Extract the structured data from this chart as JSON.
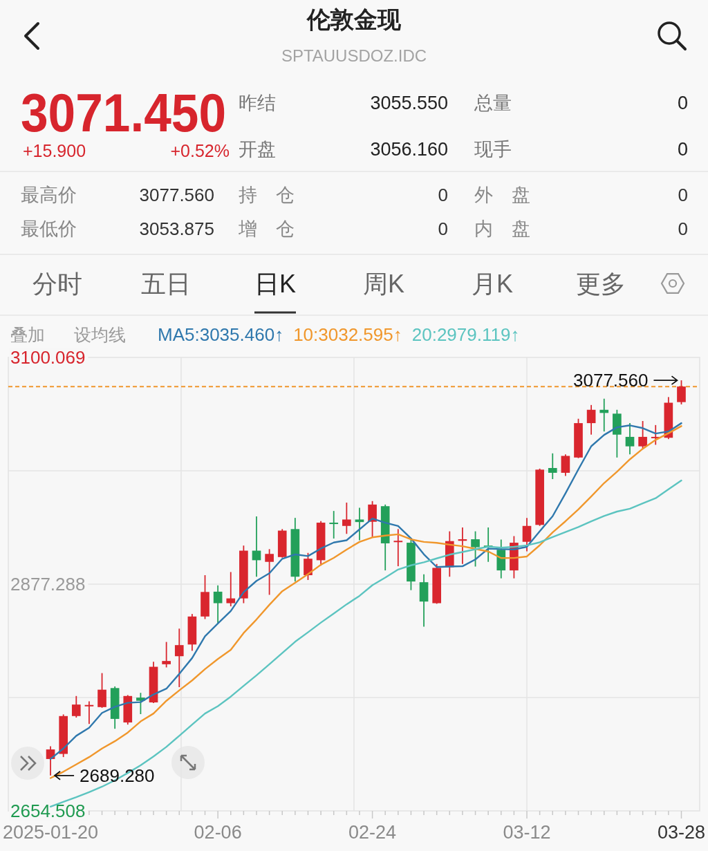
{
  "chart_data": [
    {
      "type": "other",
      "title": "伦敦金现",
      "subtitle": "SPTAUUSDOZ.IDC",
      "annotations": [
        "3071.450",
        "+15.900",
        "+0.52%",
        "昨结",
        "3055.550",
        "总量",
        "0",
        "开盘",
        "3056.160",
        "现手",
        "0",
        "最高价",
        "3077.560",
        "持　仓",
        "0",
        "外　盘",
        "0",
        "最低价",
        "3053.875",
        "增　仓",
        "0",
        "内　盘",
        "0",
        "分时",
        "五日",
        "日K",
        "周K",
        "月K",
        "更多",
        "叠加",
        "设均线"
      ]
    },
    {
      "type": "candlestick",
      "categories": [
        "2025-01-20",
        null,
        null,
        null,
        null,
        null,
        null,
        null,
        null,
        null,
        null,
        null,
        null,
        "02-06",
        null,
        null,
        null,
        null,
        null,
        null,
        null,
        null,
        null,
        null,
        null,
        "02-24",
        null,
        null,
        null,
        null,
        null,
        null,
        null,
        null,
        null,
        null,
        null,
        "03-12",
        null,
        null,
        null,
        null,
        null,
        null,
        null,
        null,
        null,
        null,
        null,
        "03-28"
      ],
      "ohlc": [
        [
          2705.5,
          2718.0,
          2689.28,
          2714.9
        ],
        [
          2710.5,
          2749.3,
          2707.4,
          2747.7
        ],
        [
          2747.7,
          2767.4,
          2746.2,
          2759.0
        ],
        [
          2757.4,
          2762.1,
          2739.9,
          2758.6
        ],
        [
          2756.5,
          2789.9,
          2755.8,
          2773.6
        ],
        [
          2775.2,
          2776.8,
          2735.2,
          2744.9
        ],
        [
          2741.4,
          2768.3,
          2739.3,
          2767.4
        ],
        [
          2765.8,
          2770.5,
          2749.6,
          2762.7
        ],
        [
          2761.1,
          2801.1,
          2760.5,
          2796.1
        ],
        [
          2798.6,
          2820.5,
          2795.5,
          2801.8
        ],
        [
          2806.5,
          2833.6,
          2776.1,
          2817.4
        ],
        [
          2818.0,
          2848.0,
          2811.8,
          2845.5
        ],
        [
          2845.5,
          2886.1,
          2843.0,
          2869.6
        ],
        [
          2869.9,
          2876.1,
          2838.6,
          2858.6
        ],
        [
          2858.6,
          2889.2,
          2855.5,
          2863.3
        ],
        [
          2863.3,
          2915.2,
          2858.6,
          2910.2
        ],
        [
          2910.2,
          2943.9,
          2884.6,
          2900.8
        ],
        [
          2899.2,
          2911.7,
          2866.8,
          2907.0
        ],
        [
          2903.9,
          2931.4,
          2903.3,
          2929.9
        ],
        [
          2931.4,
          2942.4,
          2879.9,
          2884.6
        ],
        [
          2886.1,
          2908.0,
          2881.4,
          2902.3
        ],
        [
          2900.8,
          2939.2,
          2895.5,
          2937.7
        ],
        [
          2937.7,
          2949.2,
          2922.1,
          2936.4
        ],
        [
          2934.5,
          2957.4,
          2926.7,
          2940.8
        ],
        [
          2940.8,
          2952.4,
          2920.5,
          2938.3
        ],
        [
          2938.6,
          2958.9,
          2923.6,
          2955.5
        ],
        [
          2953.9,
          2955.5,
          2890.8,
          2917.4
        ],
        [
          2918.6,
          2931.4,
          2894.9,
          2919.9
        ],
        [
          2918.0,
          2922.7,
          2871.4,
          2879.9
        ],
        [
          2879.2,
          2887.0,
          2835.5,
          2860.2
        ],
        [
          2858.6,
          2897.1,
          2858.0,
          2893.3
        ],
        [
          2893.9,
          2929.2,
          2884.6,
          2919.6
        ],
        [
          2919.9,
          2933.0,
          2897.1,
          2921.4
        ],
        [
          2921.4,
          2929.2,
          2894.6,
          2913.6
        ],
        [
          2915.2,
          2933.0,
          2899.2,
          2913.3
        ],
        [
          2911.1,
          2921.1,
          2883.0,
          2890.8
        ],
        [
          2890.8,
          2924.5,
          2883.0,
          2918.0
        ],
        [
          2918.9,
          2942.4,
          2909.6,
          2934.5
        ],
        [
          2935.5,
          2990.8,
          2934.5,
          2989.8
        ],
        [
          2991.4,
          3005.8,
          2980.5,
          2986.7
        ],
        [
          2986.7,
          3004.8,
          2983.6,
          3003.3
        ],
        [
          3001.7,
          3039.8,
          3001.1,
          3035.5
        ],
        [
          3035.5,
          3053.3,
          3024.2,
          3048.6
        ],
        [
          3048.6,
          3059.5,
          3027.3,
          3045.5
        ],
        [
          3044.8,
          3048.6,
          3001.7,
          3024.2
        ],
        [
          3022.0,
          3035.5,
          3004.8,
          3012.7
        ],
        [
          3012.7,
          3037.6,
          3010.5,
          3022.0
        ],
        [
          3021.1,
          3033.6,
          3014.2,
          3022.0
        ],
        [
          3021.1,
          3061.1,
          3019.8,
          3055.55
        ],
        [
          3056.16,
          3077.56,
          3053.875,
          3071.45
        ]
      ],
      "colors": [
        "#d9262e",
        "#d9262e",
        "#d9262e",
        "#d9262e",
        "#d9262e",
        "#23a05a",
        "#d9262e",
        "#23a05a",
        "#d9262e",
        "#d9262e",
        "#d9262e",
        "#d9262e",
        "#d9262e",
        "#23a05a",
        "#d9262e",
        "#d9262e",
        "#23a05a",
        "#d9262e",
        "#d9262e",
        "#23a05a",
        "#d9262e",
        "#d9262e",
        "#23a05a",
        "#d9262e",
        "#23a05a",
        "#d9262e",
        "#23a05a",
        "#d9262e",
        "#23a05a",
        "#23a05a",
        "#d9262e",
        "#d9262e",
        "#d9262e",
        "#23a05a",
        "#23a05a",
        "#23a05a",
        "#d9262e",
        "#d9262e",
        "#d9262e",
        "#23a05a",
        "#d9262e",
        "#d9262e",
        "#d9262e",
        "#23a05a",
        "#23a05a",
        "#23a05a",
        "#d9262e",
        "#d9262e",
        "#d9262e",
        "#d9262e"
      ],
      "series": [
        {
          "name": "MA5:3035.460↑",
          "type": "line",
          "color": "#2f78ad",
          "values": [
            2705.5,
            2715.8,
            2728.3,
            2736.2,
            2750.8,
            2756.8,
            2760.7,
            2761.4,
            2768.9,
            2774.6,
            2789.1,
            2804.7,
            2826.1,
            2838.6,
            2850.9,
            2869.4,
            2880.5,
            2888.0,
            2902.2,
            2906.5,
            2904.9,
            2912.3,
            2918.2,
            2920.4,
            2931.1,
            2941.7,
            2937.7,
            2934.4,
            2922.2,
            2906.6,
            2894.1,
            2894.6,
            2894.9,
            2901.6,
            2912.2,
            2911.7,
            2911.4,
            2914.0,
            2929.3,
            2944.0,
            2966.5,
            2990.0,
            3012.8,
            3023.9,
            3031.4,
            3033.3,
            3030.6,
            3025.3,
            3027.3,
            3035.46
          ]
        },
        {
          "name": "10:3032.595↑",
          "type": "line",
          "color": "#f0972c",
          "values": [
            2686.8,
            2693.0,
            2700.2,
            2707.4,
            2715.8,
            2723.0,
            2731.5,
            2742.4,
            2750.2,
            2762.7,
            2772.9,
            2782.7,
            2793.8,
            2803.8,
            2812.7,
            2829.3,
            2842.6,
            2857.0,
            2870.4,
            2878.7,
            2887.2,
            2896.4,
            2903.1,
            2911.3,
            2918.8,
            2923.3,
            2925.0,
            2926.3,
            2921.3,
            2918.8,
            2917.9,
            2916.1,
            2914.6,
            2911.9,
            2909.4,
            2902.9,
            2903.0,
            2904.5,
            2915.5,
            2928.1,
            2939.1,
            2950.7,
            2963.4,
            2976.6,
            2987.7,
            2999.9,
            3010.3,
            3019.0,
            3025.6,
            3032.595
          ]
        },
        {
          "name": "20:2979.119↑",
          "type": "line",
          "color": "#5cc4c0",
          "values": [
            2658.7,
            2663.4,
            2668.0,
            2673.0,
            2678.3,
            2684.6,
            2691.8,
            2699.3,
            2708.0,
            2717.4,
            2728.3,
            2739.3,
            2750.2,
            2757.4,
            2766.8,
            2777.4,
            2787.7,
            2798.6,
            2809.6,
            2820.7,
            2830.0,
            2839.5,
            2848.4,
            2857.5,
            2865.8,
            2876.3,
            2883.8,
            2891.7,
            2895.8,
            2898.8,
            2902.6,
            2906.3,
            2908.9,
            2911.6,
            2914.1,
            2913.1,
            2914.0,
            2915.4,
            2918.4,
            2923.5,
            2928.5,
            2933.4,
            2939.0,
            2944.3,
            2948.6,
            2951.4,
            2956.6,
            2961.7,
            2970.5,
            2979.119
          ]
        }
      ],
      "ylim": [
        2654.508,
        3100.069
      ],
      "yticks": [
        3100.069,
        {
          "value": 2988.679,
          "label": null
        },
        2877.288,
        {
          "value": 2765.898,
          "label": null
        },
        2654.508
      ],
      "ref_lines": [
        {
          "axis": "y",
          "value": 3071.45,
          "color": "#f0972c",
          "line_style": "dashed"
        }
      ],
      "annotations": [
        {
          "text": "3077.560",
          "x": "03-28",
          "y": 3077.56
        },
        {
          "text": "2689.280",
          "x": "2025-01-20",
          "y": 2689.28
        }
      ],
      "grid": true,
      "legend": "top left"
    }
  ]
}
